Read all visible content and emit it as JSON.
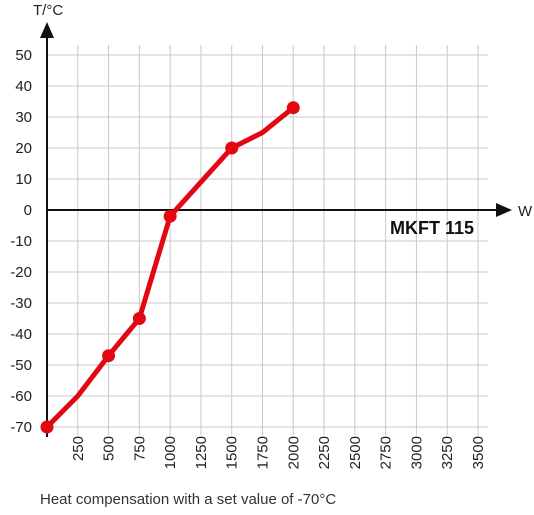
{
  "chart_data": {
    "type": "line",
    "xlabel": "W",
    "ylabel": "T/°C",
    "xlim": [
      0,
      3500
    ],
    "ylim": [
      -70,
      50
    ],
    "xticks": [
      250,
      500,
      750,
      1000,
      1250,
      1500,
      1750,
      2000,
      2250,
      2500,
      2750,
      3000,
      3250,
      3500
    ],
    "xtick_labels": [
      "250",
      "500",
      "750",
      "1000",
      "1250",
      "1500",
      "1750",
      "2000",
      "2250",
      "2500",
      "2750",
      "3000",
      "3250",
      "3500"
    ],
    "yticks": [
      50,
      40,
      30,
      20,
      10,
      0,
      -10,
      -20,
      -30,
      -40,
      -50,
      -60,
      -70
    ],
    "ytick_labels": [
      "50",
      "40",
      "30",
      "20",
      "10",
      "0",
      "-10",
      "-20",
      "-30",
      "-40",
      "-50",
      "-60",
      "-70"
    ],
    "grid": true,
    "series": [
      {
        "color": "#e30613",
        "x": [
          0,
          250,
          500,
          750,
          1000,
          1250,
          1500,
          1750,
          2000
        ],
        "y": [
          -70,
          -60,
          -47,
          -35,
          -2,
          9,
          20,
          25,
          33
        ],
        "markers": [
          true,
          false,
          true,
          true,
          true,
          false,
          true,
          false,
          true
        ]
      }
    ],
    "annotation": "MKFT 115",
    "caption": "Heat compensation with a set value of -70°C"
  }
}
